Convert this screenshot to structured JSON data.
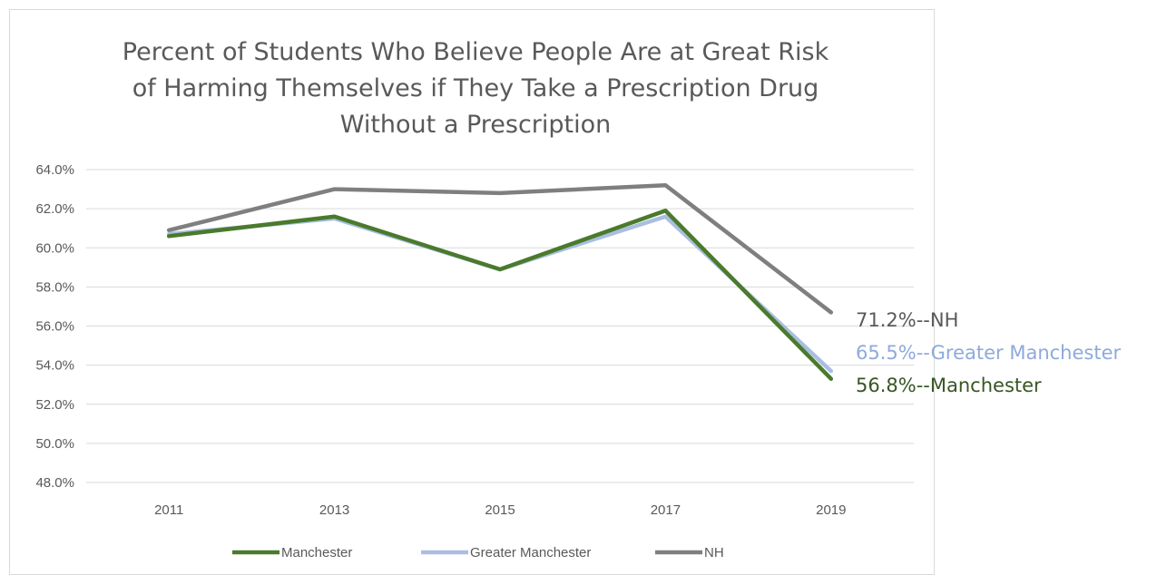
{
  "chart_data": {
    "type": "line",
    "title": "Percent of Students Who Believe People Are at Great Risk of Harming Themselves if They Take a Prescription Drug Without a Prescription",
    "title_lines": [
      "Percent of Students Who Believe People Are at Great Risk",
      "of Harming Themselves if They Take a Prescription Drug",
      "Without a Prescription"
    ],
    "xlabel": "",
    "ylabel": "",
    "categories": [
      "2011",
      "2013",
      "2015",
      "2017",
      "2019"
    ],
    "ylim": [
      48.0,
      64.0
    ],
    "yticks": [
      "64.0%",
      "62.0%",
      "60.0%",
      "58.0%",
      "56.0%",
      "54.0%",
      "52.0%",
      "50.0%",
      "48.0%"
    ],
    "grid": true,
    "legend_position": "bottom",
    "series": [
      {
        "name": "Manchester",
        "color": "#4a7a2c",
        "values": [
          60.6,
          61.6,
          58.9,
          61.9,
          53.3
        ]
      },
      {
        "name": "Greater Manchester",
        "color": "#a9bee0",
        "values": [
          60.7,
          61.5,
          58.9,
          61.6,
          53.7
        ]
      },
      {
        "name": "NH",
        "color": "#7f7f7f",
        "values": [
          60.9,
          63.0,
          62.8,
          63.2,
          56.7
        ]
      }
    ],
    "annotations": [
      {
        "text": "71.2%--NH",
        "color": "#595959"
      },
      {
        "text": "65.5%--Greater Manchester",
        "color": "#8eaadb"
      },
      {
        "text": "56.8%--Manchester",
        "color": "#375623"
      }
    ]
  }
}
